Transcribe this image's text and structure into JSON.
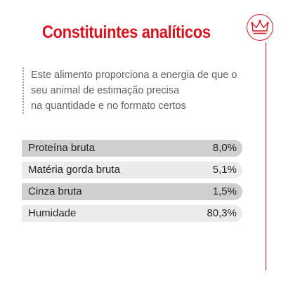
{
  "title": "Constituintes analíticos",
  "description": [
    "Este alimento proporciona a energia de que o",
    "seu animal de estimação precisa",
    "na quantidade e no formato certos"
  ],
  "constituents": [
    {
      "label": "Proteína bruta",
      "value": "8,0%"
    },
    {
      "label": "Matéria gorda bruta",
      "value": "5,1%"
    },
    {
      "label": "Cinza bruta",
      "value": "1,5%"
    },
    {
      "label": "Humidade",
      "value": "80,3%"
    }
  ],
  "colors": {
    "accent": "#d7141f",
    "row_dark": "#cfcfcf",
    "row_light": "#ececec"
  },
  "logo_icon": "crown-icon"
}
